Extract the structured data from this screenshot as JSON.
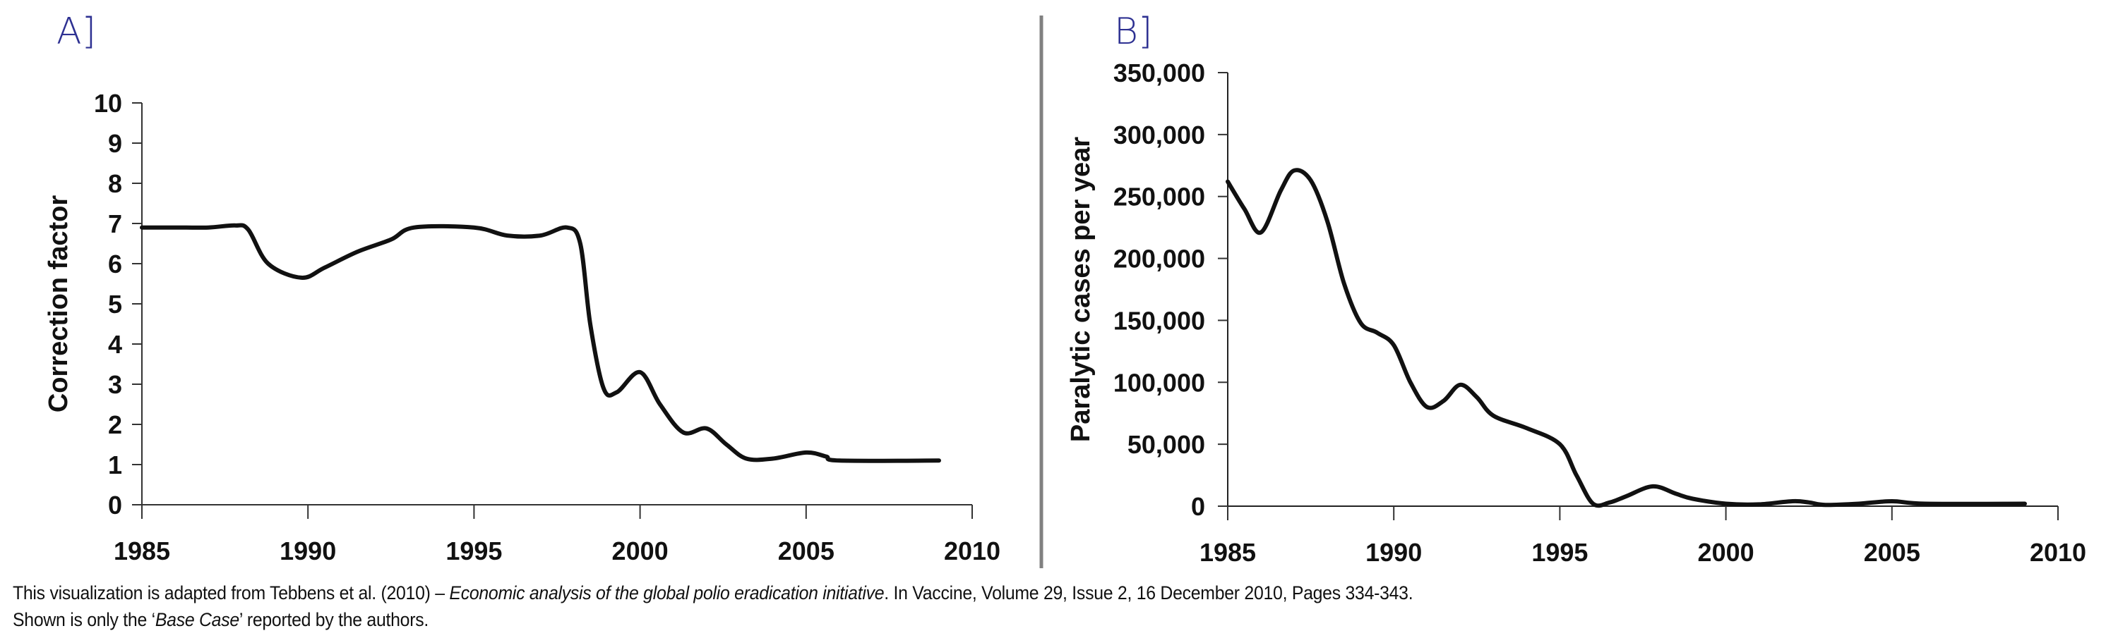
{
  "panels": {
    "a_label": "A]",
    "b_label": "B]"
  },
  "footnote": {
    "line1_pre": "This visualization is adapted from Tebbens et al. (2010) – ",
    "line1_italic": "Economic analysis of the global polio eradication initiative",
    "line1_post": ". In Vaccine, Volume 29, Issue 2, 16 December 2010, Pages 334-343.",
    "line2_pre": "Shown is only the ‘",
    "line2_italic": "Base Case",
    "line2_post": "’ reported by the authors."
  },
  "colors": {
    "panel_label": "#2e3192",
    "line": "#111111",
    "divider": "#808080"
  },
  "chart_data": [
    {
      "id": "A",
      "type": "line",
      "title": "",
      "xlabel": "",
      "ylabel": "Correction factor",
      "xlim": [
        1985,
        2010
      ],
      "ylim": [
        0,
        10
      ],
      "xticks": [
        1985,
        1990,
        1995,
        2000,
        2005,
        2010
      ],
      "xtick_labels": [
        "1985",
        "1990",
        "1995",
        "2000",
        "2005",
        "2010"
      ],
      "yticks": [
        0,
        1,
        2,
        3,
        4,
        5,
        6,
        7,
        8,
        9,
        10
      ],
      "ytick_labels": [
        "0",
        "1",
        "2",
        "3",
        "4",
        "5",
        "6",
        "7",
        "8",
        "9",
        "10"
      ],
      "grid": false,
      "legend": "none",
      "series": [
        {
          "name": "Base Case",
          "x": [
            1985,
            1986,
            1987,
            1987.8,
            1988.2,
            1988.8,
            1989.8,
            1990.5,
            1991.5,
            1992.5,
            1993.2,
            1995,
            1996,
            1997,
            1997.8,
            1998.2,
            1998.5,
            1998.9,
            1999.3,
            2000,
            2000.6,
            2001.3,
            2002,
            2002.6,
            2003.2,
            2004,
            2005,
            2005.6,
            2006,
            2009
          ],
          "y": [
            6.9,
            6.9,
            6.9,
            6.95,
            6.85,
            6.0,
            5.65,
            5.9,
            6.3,
            6.6,
            6.9,
            6.9,
            6.7,
            6.7,
            6.9,
            6.5,
            4.5,
            2.9,
            2.8,
            3.3,
            2.5,
            1.8,
            1.9,
            1.5,
            1.15,
            1.15,
            1.3,
            1.2,
            1.1,
            1.1
          ]
        }
      ]
    },
    {
      "id": "B",
      "type": "line",
      "title": "",
      "xlabel": "",
      "ylabel": "Paralytic cases per year",
      "xlim": [
        1985,
        2010
      ],
      "ylim": [
        0,
        350000
      ],
      "xticks": [
        1985,
        1990,
        1995,
        2000,
        2005,
        2010
      ],
      "xtick_labels": [
        "1985",
        "1990",
        "1995",
        "2000",
        "2005",
        "2010"
      ],
      "yticks": [
        0,
        50000,
        100000,
        150000,
        200000,
        250000,
        300000,
        350000
      ],
      "ytick_labels": [
        "0",
        "50,000",
        "100,000",
        "150,000",
        "200,000",
        "250,000",
        "300,000",
        "350,000"
      ],
      "grid": false,
      "legend": "none",
      "series": [
        {
          "name": "Base Case",
          "x": [
            1985,
            1985.5,
            1986,
            1986.6,
            1987,
            1987.5,
            1988,
            1988.5,
            1989,
            1989.5,
            1990,
            1990.5,
            1991,
            1991.5,
            1992,
            1992.5,
            1993,
            1994,
            1995,
            1995.5,
            1996,
            1996.5,
            1997,
            1997.8,
            1998.5,
            1999,
            2000,
            2001,
            2002,
            2002.5,
            2003,
            2004,
            2005,
            2006,
            2009
          ],
          "y": [
            262000,
            240000,
            221000,
            255000,
            271000,
            263000,
            230000,
            180000,
            148000,
            140000,
            130000,
            100000,
            80000,
            85000,
            98000,
            88000,
            73000,
            63000,
            50000,
            25000,
            2000,
            3000,
            8000,
            16000,
            10000,
            6000,
            2000,
            1500,
            4000,
            3000,
            1000,
            2000,
            4000,
            2000,
            2000
          ]
        }
      ]
    }
  ]
}
